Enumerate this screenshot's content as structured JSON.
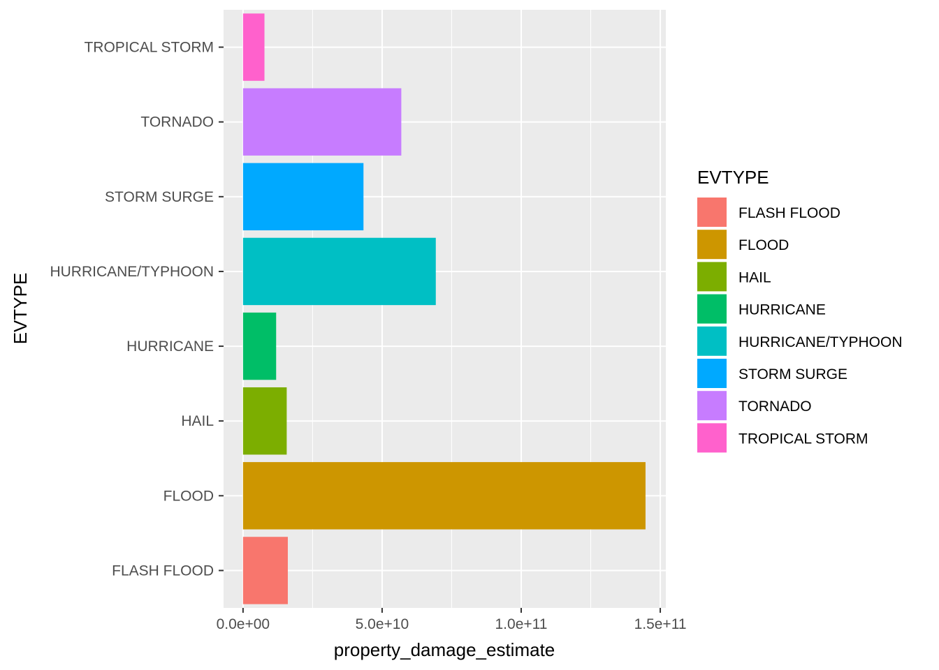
{
  "chart_data": {
    "type": "bar",
    "orientation": "horizontal",
    "title": "",
    "xlabel": "property_damage_estimate",
    "ylabel": "EVTYPE",
    "categories": [
      "FLASH FLOOD",
      "FLOOD",
      "HAIL",
      "HURRICANE",
      "HURRICANE/TYPHOON",
      "STORM SURGE",
      "TORNADO",
      "TROPICAL STORM"
    ],
    "values": [
      16100000000,
      144700000000,
      15700000000,
      11900000000,
      69300000000,
      43300000000,
      56900000000,
      7700000000
    ],
    "colors": [
      "#F8766D",
      "#CD9600",
      "#7CAE00",
      "#00BE67",
      "#00BFC4",
      "#00A9FF",
      "#C77CFF",
      "#FF61CC"
    ],
    "xlim": [
      -7000000000,
      152000000000
    ],
    "x_ticks": [
      0,
      50000000000,
      100000000000,
      150000000000
    ],
    "x_tick_labels": [
      "0.0e+00",
      "5.0e+10",
      "1.0e+11",
      "1.5e+11"
    ],
    "grid": true,
    "panel_background": "#EBEBEB",
    "legend": {
      "title": "EVTYPE",
      "position": "right",
      "entries": [
        "FLASH FLOOD",
        "FLOOD",
        "HAIL",
        "HURRICANE",
        "HURRICANE/TYPHOON",
        "STORM SURGE",
        "TORNADO",
        "TROPICAL STORM"
      ]
    }
  }
}
